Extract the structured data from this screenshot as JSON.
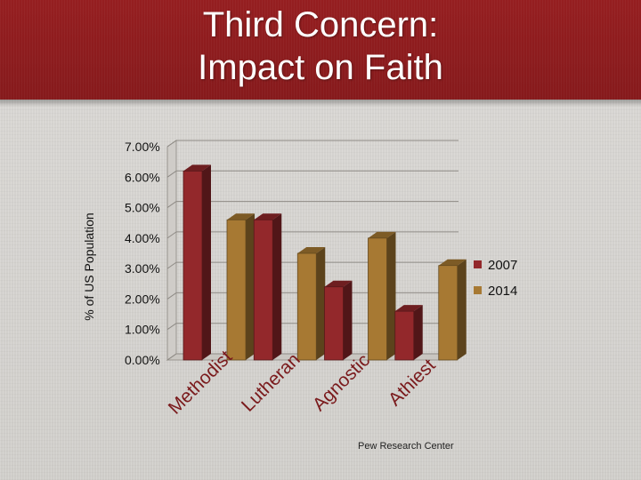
{
  "slide": {
    "title_line1": "Third Concern:",
    "title_line2": "Impact on Faith",
    "footer": "Pew Research Center"
  },
  "chart_data": {
    "type": "bar",
    "categories": [
      "Methodist",
      "Lutheran",
      "Agnostic",
      "Athiest"
    ],
    "series": [
      {
        "name": "2007",
        "values": [
          6.2,
          4.6,
          2.4,
          1.6
        ],
        "color": "#93282b"
      },
      {
        "name": "2014",
        "values": [
          4.6,
          3.5,
          4.0,
          3.1
        ],
        "color": "#a77933"
      }
    ],
    "ylabel": "% of US Population",
    "ylim": [
      0,
      7
    ],
    "yticks": [
      "0.00%",
      "1.00%",
      "2.00%",
      "3.00%",
      "4.00%",
      "5.00%",
      "6.00%",
      "7.00%"
    ],
    "grid": true,
    "legend_position": "right",
    "style": "3d-column"
  }
}
